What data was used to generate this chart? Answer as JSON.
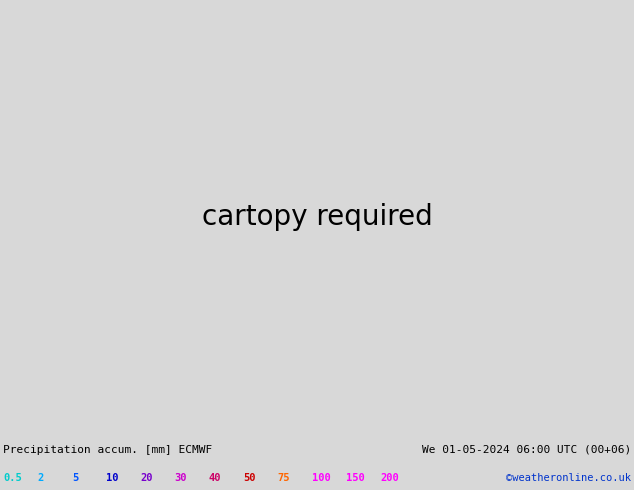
{
  "title_left": "Precipitation accum. [mm] ECMWF",
  "title_right": "We 01-05-2024 06:00 UTC (00+06)",
  "watermark": "©weatheronline.co.uk",
  "colorbar_values": [
    "0.5",
    "2",
    "5",
    "10",
    "20",
    "30",
    "40",
    "50",
    "75",
    "100",
    "150",
    "200"
  ],
  "cb_text_colors": [
    "#00cccc",
    "#00aaff",
    "#0055ff",
    "#0000cc",
    "#7700cc",
    "#cc00cc",
    "#cc0066",
    "#cc0000",
    "#ff6600",
    "#ff00ff",
    "#ff00ff",
    "#ff00ff"
  ],
  "sea_color": "#c8c8c8",
  "land_color": "#b0dc90",
  "border_color": "#222222",
  "prec_color_light": "#88ddff",
  "prec_color_med": "#44bbee",
  "prec_color_dark": "#2299cc",
  "bottom_bg": "#d8d8d8",
  "fig_width": 6.34,
  "fig_height": 4.9,
  "dpi": 100,
  "map_extent": [
    0.0,
    40.0,
    52.0,
    75.0
  ],
  "title_fontsize": 8,
  "cb_fontsize": 7.5
}
